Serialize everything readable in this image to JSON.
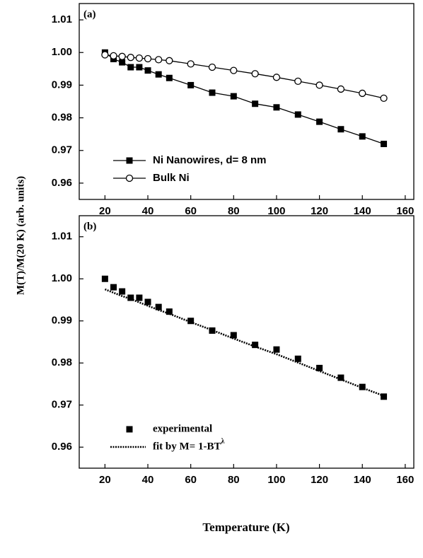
{
  "chart_data": [
    {
      "type": "line",
      "annotation": "(a)",
      "y_label": "M(T)/M(20 K) (arb. units)",
      "x": [
        20,
        24,
        28,
        32,
        36,
        40,
        45,
        50,
        60,
        70,
        80,
        90,
        100,
        110,
        120,
        130,
        140,
        150
      ],
      "series": [
        {
          "name": "Ni Nanowires, d= 8 nm",
          "color": "#000000",
          "marker": "square",
          "line": "solid",
          "values": [
            1.0,
            0.998,
            0.997,
            0.9955,
            0.9955,
            0.9945,
            0.9933,
            0.9922,
            0.99,
            0.9877,
            0.9866,
            0.9843,
            0.9832,
            0.981,
            0.9788,
            0.9765,
            0.9743,
            0.972
          ]
        },
        {
          "name": "Bulk Ni",
          "color": "#000000",
          "marker": "open-circle",
          "line": "solid",
          "values": [
            0.9993,
            0.999,
            0.9988,
            0.9985,
            0.9983,
            0.9981,
            0.9978,
            0.9975,
            0.9965,
            0.9955,
            0.9945,
            0.9935,
            0.9924,
            0.9912,
            0.99,
            0.9888,
            0.9875,
            0.986
          ]
        }
      ],
      "xlim": [
        8,
        164
      ],
      "xticks": [
        20,
        40,
        60,
        80,
        100,
        120,
        140,
        160
      ],
      "ylim": [
        0.955,
        1.015
      ],
      "yticks": [
        0.96,
        0.97,
        0.98,
        0.99,
        {
          "value": 1,
          "label": "1.00"
        },
        1.01
      ],
      "legend": "lower left",
      "legend_font": "sans"
    },
    {
      "type": "line",
      "annotation": "(b)",
      "x_label": "Temperature (K)",
      "x": [
        20,
        24,
        28,
        32,
        36,
        40,
        45,
        50,
        60,
        70,
        80,
        90,
        100,
        110,
        120,
        130,
        140,
        150
      ],
      "series": [
        {
          "name": "experimental",
          "color": "#000000",
          "marker": "square",
          "line": "none",
          "values": [
            1.0,
            0.998,
            0.997,
            0.9955,
            0.9955,
            0.9945,
            0.9933,
            0.9922,
            0.99,
            0.9877,
            0.9866,
            0.9843,
            0.9832,
            0.981,
            0.9788,
            0.9765,
            0.9743,
            0.972
          ]
        },
        {
          "name": "fit by M= 1-BT",
          "name_superscript": "λ",
          "color": "#000000",
          "marker": "none",
          "line": "dotted",
          "values": [
            0.9975,
            0.9967,
            0.9959,
            0.9952,
            0.9944,
            0.9936,
            0.9926,
            0.9917,
            0.9897,
            0.9878,
            0.9858,
            0.9839,
            0.9821,
            0.9801,
            0.9781,
            0.9761,
            0.9741,
            0.9722
          ]
        }
      ],
      "xlim": [
        8,
        164
      ],
      "xticks": [
        20,
        40,
        60,
        80,
        100,
        120,
        140,
        160
      ],
      "ylim": [
        0.955,
        1.015
      ],
      "yticks": [
        0.96,
        0.97,
        0.98,
        0.99,
        {
          "value": 1,
          "label": "1.00"
        },
        1.01
      ],
      "legend": "lower left",
      "legend_font": "serif"
    }
  ]
}
